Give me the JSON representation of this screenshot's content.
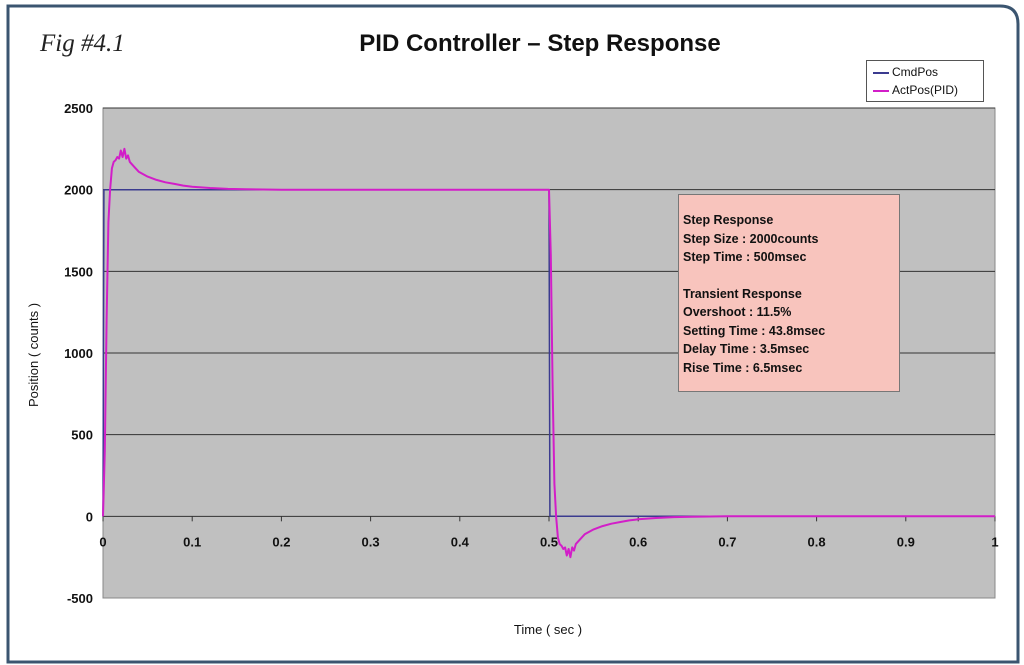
{
  "figure": {
    "label": "Fig #4.1",
    "title": "PID Controller – Step Response"
  },
  "info_box": {
    "heading": "Step Response",
    "step_size": "Step Size : 2000counts",
    "step_time": "Step Time : 500msec",
    "transient_heading": "Transient Response",
    "overshoot": "Overshoot : 11.5%",
    "settling_time": "Setting Time : 43.8msec",
    "delay_time": "Delay Time : 3.5msec",
    "rise_time": "Rise Time : 6.5msec"
  },
  "chart_data": {
    "type": "line",
    "title": "PID Controller – Step Response",
    "xlabel": "Time ( sec )",
    "ylabel": "Position ( counts )",
    "xlim": [
      0,
      1
    ],
    "ylim": [
      -500,
      2500
    ],
    "x_ticks": [
      "0",
      "0.1",
      "0.2",
      "0.3",
      "0.4",
      "0.5",
      "0.6",
      "0.7",
      "0.8",
      "0.9",
      "1"
    ],
    "y_ticks": [
      "2500",
      "2000",
      "1500",
      "1000",
      "500",
      "0",
      "-500"
    ],
    "grid": "horizontal",
    "legend_position": "top-right",
    "colors": {
      "plot_bg": "#c0c0c0",
      "CmdPos": "#3b3b8f",
      "ActPos(PID)": "#d21ec8"
    },
    "series": [
      {
        "name": "CmdPos",
        "x": [
          0,
          0.001,
          0.5,
          0.501,
          1.0
        ],
        "y": [
          0,
          2000,
          2000,
          0,
          0
        ]
      },
      {
        "name": "ActPos(PID)",
        "x": [
          0,
          0.002,
          0.004,
          0.006,
          0.008,
          0.01,
          0.012,
          0.014,
          0.016,
          0.018,
          0.02,
          0.022,
          0.024,
          0.026,
          0.028,
          0.03,
          0.035,
          0.04,
          0.05,
          0.06,
          0.07,
          0.08,
          0.09,
          0.1,
          0.12,
          0.14,
          0.16,
          0.2,
          0.3,
          0.4,
          0.49,
          0.5,
          0.502,
          0.504,
          0.506,
          0.508,
          0.51,
          0.512,
          0.514,
          0.516,
          0.518,
          0.52,
          0.522,
          0.524,
          0.526,
          0.528,
          0.53,
          0.535,
          0.54,
          0.55,
          0.56,
          0.57,
          0.58,
          0.59,
          0.6,
          0.62,
          0.64,
          0.66,
          0.7,
          0.8,
          0.9,
          1.0
        ],
        "y": [
          0,
          400,
          1200,
          1800,
          2000,
          2130,
          2170,
          2180,
          2200,
          2190,
          2240,
          2200,
          2250,
          2190,
          2210,
          2170,
          2140,
          2110,
          2080,
          2060,
          2045,
          2035,
          2025,
          2018,
          2010,
          2005,
          2002,
          2000,
          2000,
          2000,
          2000,
          2000,
          1600,
          800,
          200,
          0,
          -130,
          -170,
          -180,
          -200,
          -190,
          -240,
          -200,
          -250,
          -190,
          -210,
          -170,
          -140,
          -110,
          -80,
          -60,
          -45,
          -35,
          -25,
          -18,
          -10,
          -5,
          -2,
          0,
          0,
          0,
          0
        ]
      }
    ]
  }
}
